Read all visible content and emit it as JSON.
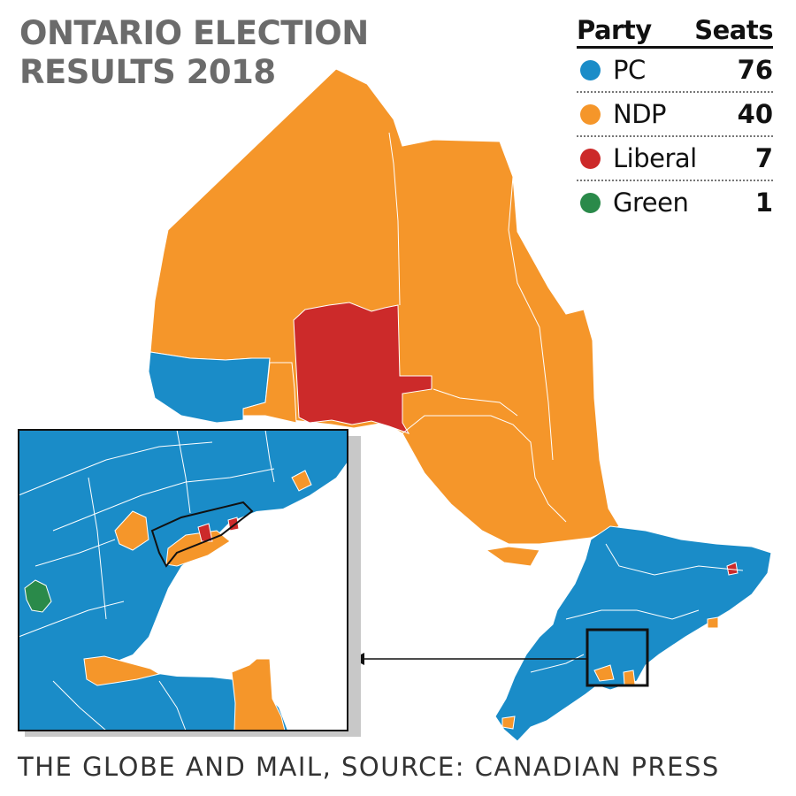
{
  "title": {
    "line1": "ONTARIO ELECTION",
    "line2": "RESULTS 2018"
  },
  "legend": {
    "party_header": "Party",
    "seats_header": "Seats",
    "items": [
      {
        "name": "PC",
        "seats": "76",
        "color": "#1a8cc8"
      },
      {
        "name": "NDP",
        "seats": "40",
        "color": "#f5962a"
      },
      {
        "name": "Liberal",
        "seats": "7",
        "color": "#cc2a2a"
      },
      {
        "name": "Green",
        "seats": "1",
        "color": "#2a8a4a"
      }
    ]
  },
  "credit": "THE GLOBE AND MAIL, SOURCE: CANADIAN PRESS",
  "colors": {
    "pc": "#1a8cc8",
    "ndp": "#f5962a",
    "liberal": "#cc2a2a",
    "green": "#2a8a4a",
    "boundary": "#ffffff"
  }
}
